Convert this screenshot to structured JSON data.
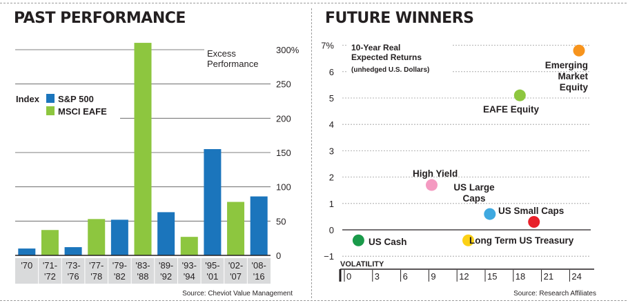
{
  "panels": {
    "left_title": "PAST PERFORMANCE",
    "right_title": "FUTURE WINNERS"
  },
  "colors": {
    "sp500": "#1b75bc",
    "eafe": "#8dc63f",
    "grid": "#9a9a9a",
    "text": "#231f20"
  },
  "chart_data": [
    {
      "type": "bar",
      "title": "PAST PERFORMANCE",
      "ylabel": "Excess Performance",
      "ylabel_lines": [
        "Excess",
        "Performance"
      ],
      "ylim": [
        0,
        300
      ],
      "y_ticks": [
        0,
        50,
        100,
        150,
        200,
        250,
        300
      ],
      "y_tick_labels": [
        "0",
        "50",
        "100",
        "150",
        "200",
        "250",
        "300%"
      ],
      "legend_title": "Index",
      "legend_position": "left",
      "legend": [
        {
          "name": "S&P 500",
          "color": "#1b75bc"
        },
        {
          "name": "MSCI EAFE",
          "color": "#8dc63f"
        }
      ],
      "categories": [
        [
          "'70",
          ""
        ],
        [
          "'71-",
          "'72"
        ],
        [
          "'73-",
          "'76"
        ],
        [
          "'77-",
          "'78"
        ],
        [
          "'79-",
          "'82"
        ],
        [
          "'83-",
          "'88"
        ],
        [
          "'89-",
          "'92"
        ],
        [
          "'93-",
          "'94"
        ],
        [
          "'95-",
          "'01"
        ],
        [
          "'02-",
          "'07"
        ],
        [
          "'08-",
          "'16"
        ]
      ],
      "bars": [
        {
          "category": "'70",
          "index": "S&P 500",
          "value": 10
        },
        {
          "category": "'71-'72",
          "index": "MSCI EAFE",
          "value": 37
        },
        {
          "category": "'73-'76",
          "index": "S&P 500",
          "value": 12
        },
        {
          "category": "'77-'78",
          "index": "MSCI EAFE",
          "value": 53
        },
        {
          "category": "'79-'82",
          "index": "S&P 500",
          "value": 52
        },
        {
          "category": "'83-'88",
          "index": "MSCI EAFE",
          "value": 310
        },
        {
          "category": "'89-'92",
          "index": "S&P 500",
          "value": 63
        },
        {
          "category": "'93-'94",
          "index": "MSCI EAFE",
          "value": 27
        },
        {
          "category": "'95-'01",
          "index": "S&P 500",
          "value": 155
        },
        {
          "category": "'02-'07",
          "index": "MSCI EAFE",
          "value": 78
        },
        {
          "category": "'08-'16",
          "index": "S&P 500",
          "value": 86
        }
      ],
      "source": "Source: Cheviot Value Management",
      "grid": true
    },
    {
      "type": "scatter",
      "title": "FUTURE WINNERS",
      "ylabel_lines": [
        "10-Year Real",
        "Expected Returns"
      ],
      "ylabel_note": "(unhedged U.S. Dollars)",
      "xlabel": "VOLATILITY",
      "xlim": [
        0,
        25.5
      ],
      "ylim": [
        -1.5,
        7.3
      ],
      "x_ticks": [
        0,
        3,
        6,
        9,
        12,
        15,
        18,
        21,
        24
      ],
      "x_tick_labels": [
        "0",
        "3",
        "6",
        "9",
        "12",
        "15",
        "18",
        "21",
        "24"
      ],
      "y_ticks": [
        -1,
        0,
        1,
        2,
        3,
        4,
        5,
        6,
        7
      ],
      "y_tick_labels": [
        "−1",
        "0",
        "1",
        "2",
        "3",
        "4",
        "5",
        "6",
        "7%"
      ],
      "points": [
        {
          "label": "US Cash",
          "label_lines": [
            "US Cash"
          ],
          "x": 1.5,
          "y": -0.4,
          "color": "#1a9a4a"
        },
        {
          "label": "Long Term US Treasury",
          "label_lines": [
            "Long Term US Treasury"
          ],
          "x": 13.2,
          "y": -0.4,
          "color": "#fcd116"
        },
        {
          "label": "High Yield",
          "label_lines": [
            "High Yield"
          ],
          "x": 9.3,
          "y": 1.7,
          "color": "#f49ac1"
        },
        {
          "label": "US Large Caps",
          "label_lines": [
            "US Large",
            "Caps"
          ],
          "x": 15.5,
          "y": 0.6,
          "color": "#3fa9e0"
        },
        {
          "label": "US Small Caps",
          "label_lines": [
            "US Small Caps"
          ],
          "x": 20.2,
          "y": 0.3,
          "color": "#e8202a"
        },
        {
          "label": "EAFE Equity",
          "label_lines": [
            "EAFE Equity"
          ],
          "x": 18.7,
          "y": 5.1,
          "color": "#8dc63f"
        },
        {
          "label": "Emerging Market Equity",
          "label_lines": [
            "Emerging",
            "Market",
            "Equity"
          ],
          "x": 25.0,
          "y": 6.8,
          "color": "#f7941d"
        }
      ],
      "source": "Source: Research Affiliates",
      "grid": true
    }
  ]
}
